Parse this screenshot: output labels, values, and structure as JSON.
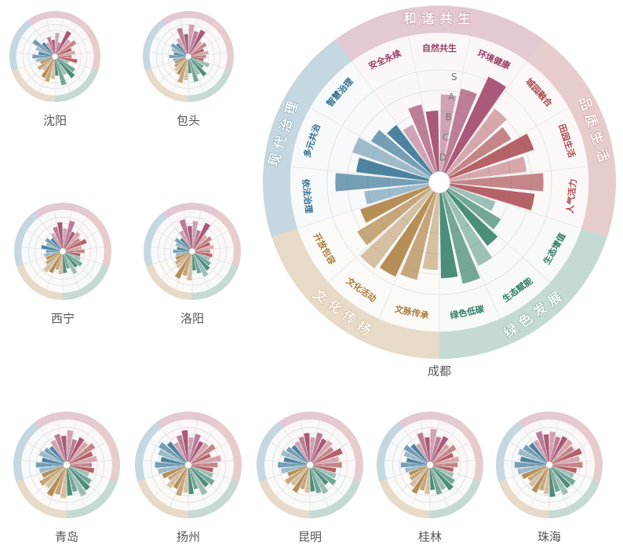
{
  "chart_data": [
    {
      "type": "radial_bar",
      "title": "成都",
      "rlim": [
        0,
        5.3
      ],
      "rticks": [
        {
          "value": 1,
          "label": "D"
        },
        {
          "value": 2,
          "label": "C"
        },
        {
          "value": 3,
          "label": "B"
        },
        {
          "value": 4,
          "label": "A"
        },
        {
          "value": 5,
          "label": "S"
        }
      ],
      "colors": [
        "#9b3d63",
        "#a8484f",
        "#2e7a66",
        "#a97b3b",
        "#2f6e8e"
      ],
      "dimensions": [
        {
          "name": "和谐共生",
          "items": [
            "安全永续",
            "自然共生",
            "环境健康"
          ]
        },
        {
          "name": "品质生活",
          "items": [
            "城园融合",
            "田园生活",
            "人气活力"
          ]
        },
        {
          "name": "绿色发展",
          "items": [
            "生态增值",
            "生态赋能",
            "绿色低碳"
          ]
        },
        {
          "name": "文化传扬",
          "items": [
            "文脉传承",
            "文化活动",
            "开放包容"
          ]
        },
        {
          "name": "现代治理",
          "items": [
            "依法治理",
            "多元共治",
            "智慧治理"
          ]
        }
      ],
      "values": [
        2.6,
        3.4,
        3.0,
        3.8,
        4.2,
        5.2,
        4.0,
        3.6,
        4.4,
        3.8,
        4.6,
        4.2,
        2.4,
        3.0,
        3.4,
        4.0,
        4.6,
        4.2,
        3.8,
        4.4,
        4.6,
        4.8,
        4.2,
        3.6,
        3.2,
        4.6,
        3.6,
        4.0,
        3.4,
        3.0
      ]
    },
    {
      "type": "radial_bar",
      "title": "沈阳",
      "rlim": [
        0,
        5.3
      ],
      "rticks": [
        1,
        2,
        3,
        4,
        5
      ],
      "colors": [
        "#9b3d63",
        "#a8484f",
        "#2e7a66",
        "#a97b3b",
        "#2f6e8e"
      ],
      "values": [
        2.2,
        3.0,
        2.4,
        3.6,
        2.0,
        4.4,
        3.2,
        3.8,
        2.6,
        3.0,
        2.4,
        3.4,
        2.0,
        3.6,
        4.2,
        3.0,
        4.6,
        2.8,
        3.4,
        4.0,
        3.6,
        2.6,
        3.0,
        2.2,
        2.8,
        3.4,
        2.4,
        3.0,
        4.0,
        2.6
      ]
    },
    {
      "type": "radial_bar",
      "title": "包头",
      "rlim": [
        0,
        5.3
      ],
      "rticks": [
        1,
        2,
        3,
        4,
        5
      ],
      "colors": [
        "#9b3d63",
        "#a8484f",
        "#2e7a66",
        "#a97b3b",
        "#2f6e8e"
      ],
      "values": [
        3.0,
        4.6,
        3.4,
        5.0,
        4.0,
        4.6,
        2.8,
        3.2,
        2.4,
        3.0,
        2.6,
        2.2,
        3.4,
        2.6,
        3.8,
        3.0,
        4.0,
        2.4,
        3.6,
        4.2,
        3.0,
        2.8,
        2.4,
        2.0,
        2.2,
        2.8,
        2.0,
        2.6,
        3.0,
        2.4
      ]
    },
    {
      "type": "radial_bar",
      "title": "西宁",
      "rlim": [
        0,
        5.3
      ],
      "rticks": [
        1,
        2,
        3,
        4,
        5
      ],
      "colors": [
        "#9b3d63",
        "#a8484f",
        "#2e7a66",
        "#a97b3b",
        "#2f6e8e"
      ],
      "values": [
        2.8,
        3.6,
        4.2,
        3.2,
        4.6,
        3.0,
        3.4,
        2.8,
        3.6,
        2.6,
        3.0,
        2.4,
        2.6,
        3.2,
        2.8,
        3.6,
        2.4,
        3.0,
        3.2,
        2.6,
        3.4,
        3.8,
        2.8,
        2.4,
        2.6,
        2.2,
        3.0,
        2.4,
        2.8,
        2.2
      ]
    },
    {
      "type": "radial_bar",
      "title": "洛阳",
      "rlim": [
        0,
        5.3
      ],
      "rticks": [
        1,
        2,
        3,
        4,
        5
      ],
      "colors": [
        "#9b3d63",
        "#a8484f",
        "#2e7a66",
        "#a97b3b",
        "#2f6e8e"
      ],
      "values": [
        3.2,
        4.8,
        3.6,
        4.4,
        3.0,
        4.6,
        2.8,
        3.2,
        2.6,
        3.0,
        2.4,
        2.8,
        2.6,
        3.0,
        3.4,
        4.0,
        3.2,
        2.6,
        4.2,
        3.6,
        4.4,
        3.0,
        2.8,
        2.4,
        2.2,
        2.6,
        2.0,
        2.4,
        2.8,
        2.2
      ]
    },
    {
      "type": "radial_bar",
      "title": "青岛",
      "rlim": [
        0,
        5.3
      ],
      "rticks": [
        1,
        2,
        3,
        4,
        5
      ],
      "colors": [
        "#9b3d63",
        "#a8484f",
        "#2e7a66",
        "#a97b3b",
        "#2f6e8e"
      ],
      "values": [
        3.6,
        4.2,
        3.8,
        4.6,
        3.4,
        4.0,
        3.8,
        4.4,
        3.6,
        4.0,
        3.2,
        3.6,
        3.0,
        3.8,
        4.2,
        4.6,
        3.6,
        4.0,
        4.4,
        4.0,
        4.6,
        3.8,
        4.2,
        3.4,
        3.6,
        4.0,
        3.2,
        3.8,
        3.4,
        3.0
      ]
    },
    {
      "type": "radial_bar",
      "title": "扬州",
      "rlim": [
        0,
        5.3
      ],
      "rticks": [
        1,
        2,
        3,
        4,
        5
      ],
      "colors": [
        "#9b3d63",
        "#a8484f",
        "#2e7a66",
        "#a97b3b",
        "#2f6e8e"
      ],
      "values": [
        3.2,
        4.0,
        4.6,
        3.6,
        4.2,
        3.4,
        3.6,
        4.2,
        3.0,
        4.4,
        3.8,
        3.2,
        3.4,
        4.0,
        3.6,
        4.4,
        3.2,
        3.8,
        3.6,
        4.2,
        3.4,
        3.8,
        3.0,
        3.6,
        4.0,
        4.4,
        3.6,
        4.2,
        4.6,
        3.8
      ]
    },
    {
      "type": "radial_bar",
      "title": "昆明",
      "rlim": [
        0,
        5.3
      ],
      "rticks": [
        1,
        2,
        3,
        4,
        5
      ],
      "colors": [
        "#9b3d63",
        "#a8484f",
        "#2e7a66",
        "#a97b3b",
        "#2f6e8e"
      ],
      "values": [
        3.4,
        3.8,
        4.2,
        3.6,
        4.4,
        3.8,
        4.0,
        3.6,
        4.6,
        3.8,
        4.2,
        3.4,
        3.6,
        4.0,
        3.2,
        4.2,
        3.8,
        3.4,
        3.6,
        3.2,
        4.0,
        3.4,
        3.8,
        3.0,
        3.8,
        4.2,
        3.4,
        4.0,
        3.6,
        3.2
      ]
    },
    {
      "type": "radial_bar",
      "title": "桂林",
      "rlim": [
        0,
        5.3
      ],
      "rticks": [
        1,
        2,
        3,
        4,
        5
      ],
      "colors": [
        "#9b3d63",
        "#a8484f",
        "#2e7a66",
        "#a97b3b",
        "#2f6e8e"
      ],
      "values": [
        3.0,
        4.4,
        3.6,
        4.8,
        3.8,
        4.2,
        3.4,
        4.0,
        3.2,
        3.8,
        3.6,
        3.0,
        3.2,
        3.8,
        4.2,
        3.6,
        4.0,
        3.2,
        3.8,
        3.4,
        4.2,
        3.6,
        3.0,
        2.8,
        3.2,
        3.8,
        3.0,
        3.6,
        4.0,
        3.4
      ]
    },
    {
      "type": "radial_bar",
      "title": "珠海",
      "rlim": [
        0,
        5.3
      ],
      "rticks": [
        1,
        2,
        3,
        4,
        5
      ],
      "colors": [
        "#9b3d63",
        "#a8484f",
        "#2e7a66",
        "#a97b3b",
        "#2f6e8e"
      ],
      "values": [
        3.6,
        4.6,
        4.0,
        4.4,
        3.8,
        4.2,
        4.2,
        3.8,
        4.6,
        4.0,
        4.4,
        3.6,
        3.4,
        4.0,
        3.8,
        4.4,
        3.6,
        4.2,
        3.8,
        3.4,
        4.0,
        3.6,
        3.2,
        3.8,
        4.2,
        4.6,
        3.8,
        4.4,
        4.0,
        3.6
      ]
    }
  ]
}
